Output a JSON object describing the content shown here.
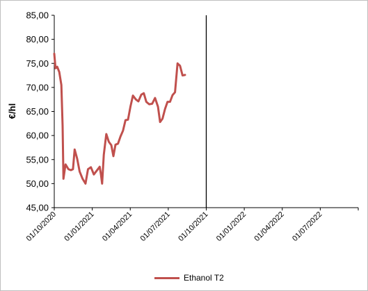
{
  "chart_data": {
    "type": "line",
    "ylabel": "€/hl",
    "ylim": [
      45,
      85
    ],
    "y_ticks": [
      "45,00",
      "50,00",
      "55,00",
      "60,00",
      "65,00",
      "70,00",
      "75,00",
      "80,00",
      "85,00"
    ],
    "x_ticks": [
      "01/10/2020",
      "01/01/2021",
      "01/04/2021",
      "01/07/2021",
      "01/10/2021",
      "01/01/2022",
      "01/04/2022",
      "01/07/2022"
    ],
    "x_range": [
      "2020-10-01",
      "2022-10-01"
    ],
    "marker_line_date": "2021-10-01",
    "legend_position": "bottom",
    "grid": false,
    "series": [
      {
        "name": "Ethanol T2",
        "color": "#c0504d",
        "points": [
          [
            "2020-10-01",
            77.0
          ],
          [
            "2020-10-04",
            74.0
          ],
          [
            "2020-10-08",
            74.3
          ],
          [
            "2020-10-13",
            73.2
          ],
          [
            "2020-10-18",
            70.5
          ],
          [
            "2020-10-21",
            62.0
          ],
          [
            "2020-10-23",
            51.0
          ],
          [
            "2020-10-28",
            54.0
          ],
          [
            "2020-11-04",
            53.0
          ],
          [
            "2020-11-10",
            52.8
          ],
          [
            "2020-11-15",
            53.0
          ],
          [
            "2020-11-19",
            57.1
          ],
          [
            "2020-11-25",
            55.2
          ],
          [
            "2020-12-01",
            52.5
          ],
          [
            "2020-12-08",
            51.0
          ],
          [
            "2020-12-15",
            50.0
          ],
          [
            "2020-12-21",
            53.0
          ],
          [
            "2020-12-28",
            53.4
          ],
          [
            "2021-01-04",
            51.9
          ],
          [
            "2021-01-11",
            52.7
          ],
          [
            "2021-01-18",
            53.5
          ],
          [
            "2021-01-21",
            52.0
          ],
          [
            "2021-01-24",
            50.0
          ],
          [
            "2021-01-28",
            56.0
          ],
          [
            "2021-02-03",
            60.3
          ],
          [
            "2021-02-09",
            58.7
          ],
          [
            "2021-02-15",
            58.0
          ],
          [
            "2021-02-20",
            55.7
          ],
          [
            "2021-02-25",
            58.1
          ],
          [
            "2021-03-03",
            58.3
          ],
          [
            "2021-03-09",
            59.8
          ],
          [
            "2021-03-15",
            61.0
          ],
          [
            "2021-03-21",
            63.2
          ],
          [
            "2021-03-27",
            63.3
          ],
          [
            "2021-04-02",
            66.0
          ],
          [
            "2021-04-08",
            68.3
          ],
          [
            "2021-04-15",
            67.5
          ],
          [
            "2021-04-21",
            67.1
          ],
          [
            "2021-04-28",
            68.5
          ],
          [
            "2021-05-04",
            68.8
          ],
          [
            "2021-05-10",
            67.0
          ],
          [
            "2021-05-17",
            66.5
          ],
          [
            "2021-05-24",
            66.6
          ],
          [
            "2021-05-31",
            67.8
          ],
          [
            "2021-06-07",
            66.0
          ],
          [
            "2021-06-12",
            62.8
          ],
          [
            "2021-06-18",
            63.5
          ],
          [
            "2021-06-24",
            65.5
          ],
          [
            "2021-06-30",
            67.0
          ],
          [
            "2021-07-06",
            67.0
          ],
          [
            "2021-07-12",
            68.4
          ],
          [
            "2021-07-18",
            69.0
          ],
          [
            "2021-07-24",
            75.0
          ],
          [
            "2021-07-30",
            74.5
          ],
          [
            "2021-08-05",
            72.5
          ],
          [
            "2021-08-11",
            72.6
          ]
        ]
      }
    ]
  }
}
